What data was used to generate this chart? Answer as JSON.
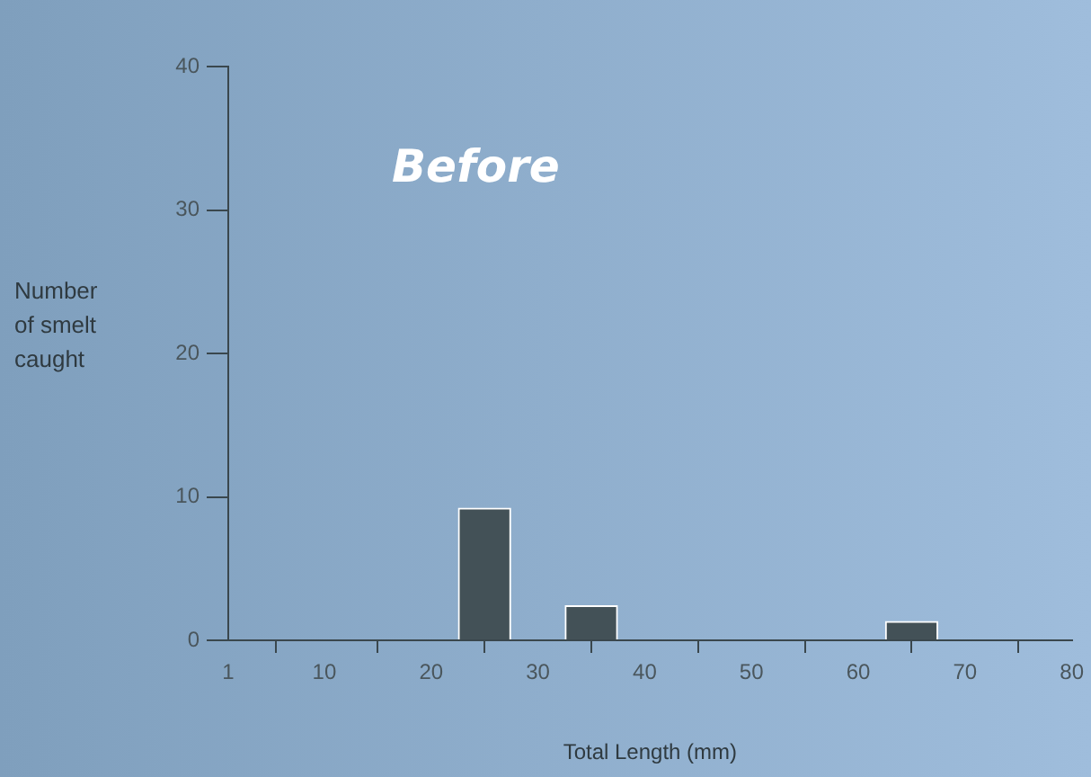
{
  "chart_data": {
    "type": "bar",
    "title": "Before",
    "xlabel": "Total Length (mm)",
    "ylabel": "Number of smelt caught",
    "x": [
      25,
      35,
      65
    ],
    "values": [
      9.2,
      2.4,
      1.3
    ],
    "color": "#435157",
    "xlim": [
      1,
      80
    ],
    "xticks": [
      1,
      10,
      20,
      30,
      40,
      50,
      60,
      70,
      80
    ],
    "ylim": [
      0,
      40
    ],
    "yticks": [
      0,
      10,
      20,
      30,
      40
    ],
    "grid": false,
    "legend": false
  }
}
